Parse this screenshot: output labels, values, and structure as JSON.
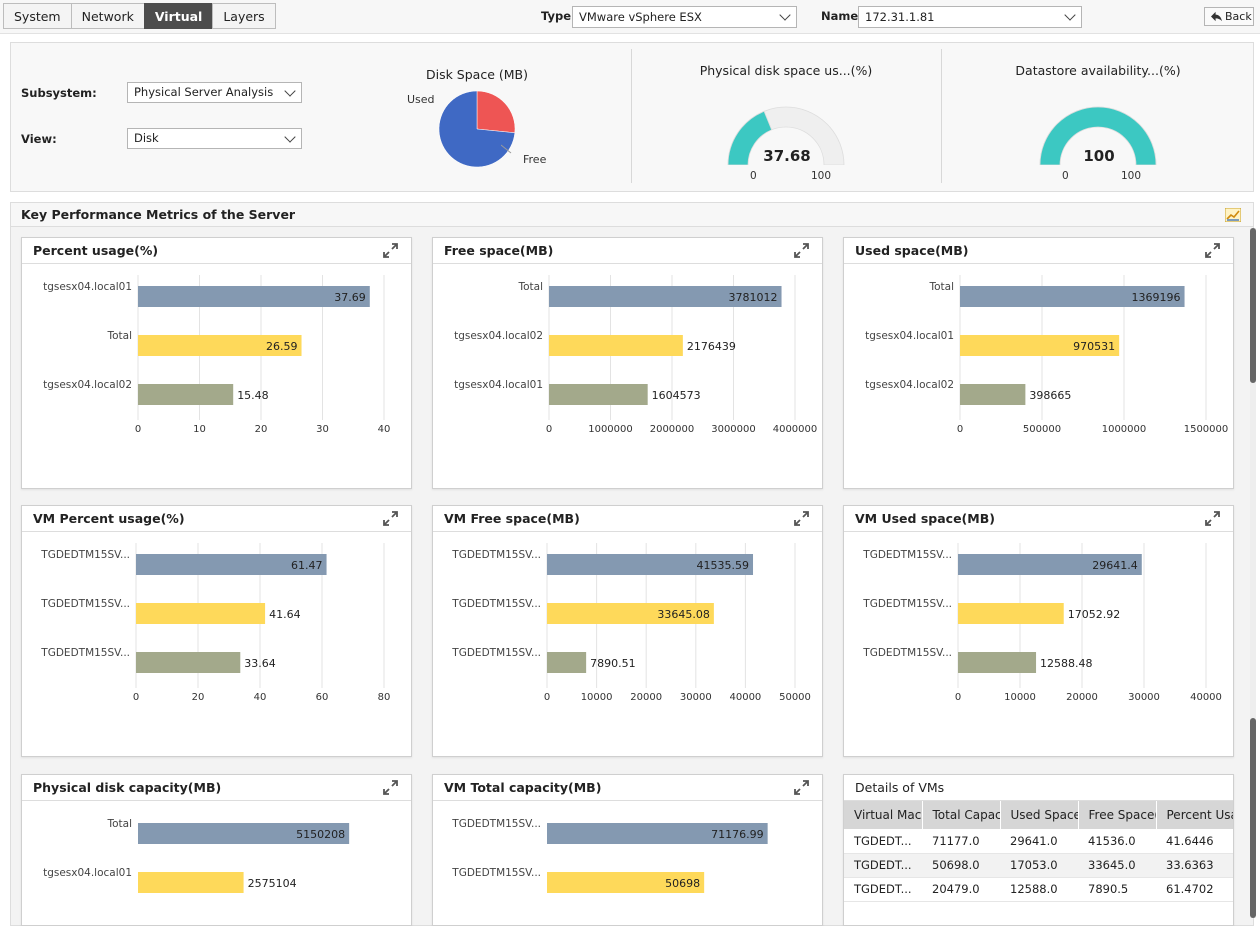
{
  "tabs": [
    {
      "label": "System",
      "active": false
    },
    {
      "label": "Network",
      "active": false
    },
    {
      "label": "Virtual",
      "active": true
    },
    {
      "label": "Layers",
      "active": false
    }
  ],
  "toolbar": {
    "type_label": "Type",
    "type_value": "VMware vSphere ESX",
    "name_label": "Name",
    "name_value": "172.31.1.81",
    "back_label": "Back"
  },
  "summary": {
    "subsystem_label": "Subsystem:",
    "subsystem_value": "Physical Server Analysis",
    "view_label": "View:",
    "view_value": "Disk",
    "pie": {
      "title": "Disk Space (MB)",
      "slices": [
        {
          "label": "Used",
          "value": 1369196,
          "color": "#ee5554"
        },
        {
          "label": "Free",
          "value": 3781012,
          "color": "#3f69c4"
        }
      ]
    },
    "gauge1": {
      "title": "Physical disk space us...(%)",
      "value": 37.68,
      "value_text": "37.68",
      "min": "0",
      "max": "100",
      "color": "#3cc8c2"
    },
    "gauge2": {
      "title": "Datastore availability...(%)",
      "value": 100,
      "value_text": "100",
      "min": "0",
      "max": "100",
      "color": "#3cc8c2"
    }
  },
  "kpm": {
    "title": "Key Performance Metrics of the Server"
  },
  "colors": {
    "bar1": "#8499b1",
    "bar2": "#fed95a",
    "bar3": "#a3a98b"
  },
  "chart_data": [
    {
      "type": "bar",
      "orientation": "horizontal",
      "title": "Percent usage(%)",
      "categories": [
        "tgsesx04.local01",
        "Total",
        "tgsesx04.local02"
      ],
      "values": [
        37.69,
        26.59,
        15.48
      ],
      "value_labels": [
        "37.69",
        "26.59",
        "15.48"
      ],
      "xlim": [
        0,
        40
      ],
      "ticks": [
        "0",
        "10",
        "20",
        "30",
        "40"
      ]
    },
    {
      "type": "bar",
      "orientation": "horizontal",
      "title": "Free space(MB)",
      "categories": [
        "Total",
        "tgsesx04.local02",
        "tgsesx04.local01"
      ],
      "values": [
        3781012,
        2176439,
        1604573
      ],
      "value_labels": [
        "3781012",
        "2176439",
        "1604573"
      ],
      "xlim": [
        0,
        4000000
      ],
      "ticks": [
        "0",
        "1000000",
        "2000000",
        "3000000",
        "4000000"
      ]
    },
    {
      "type": "bar",
      "orientation": "horizontal",
      "title": "Used space(MB)",
      "categories": [
        "Total",
        "tgsesx04.local01",
        "tgsesx04.local02"
      ],
      "values": [
        1369196,
        970531,
        398665
      ],
      "value_labels": [
        "1369196",
        "970531",
        "398665"
      ],
      "xlim": [
        0,
        1500000
      ],
      "ticks": [
        "0",
        "500000",
        "1000000",
        "1500000"
      ]
    },
    {
      "type": "bar",
      "orientation": "horizontal",
      "title": "VM Percent usage(%)",
      "categories": [
        "TGDEDTM15SV...",
        "TGDEDTM15SV...",
        "TGDEDTM15SV..."
      ],
      "values": [
        61.47,
        41.64,
        33.64
      ],
      "value_labels": [
        "61.47",
        "41.64",
        "33.64"
      ],
      "xlim": [
        0,
        80
      ],
      "ticks": [
        "0",
        "20",
        "40",
        "60",
        "80"
      ]
    },
    {
      "type": "bar",
      "orientation": "horizontal",
      "title": "VM Free space(MB)",
      "categories": [
        "TGDEDTM15SV...",
        "TGDEDTM15SV...",
        "TGDEDTM15SV..."
      ],
      "values": [
        41535.59,
        33645.08,
        7890.51
      ],
      "value_labels": [
        "41535.59",
        "33645.08",
        "7890.51"
      ],
      "xlim": [
        0,
        50000
      ],
      "ticks": [
        "0",
        "10000",
        "20000",
        "30000",
        "40000",
        "50000"
      ]
    },
    {
      "type": "bar",
      "orientation": "horizontal",
      "title": "VM Used space(MB)",
      "categories": [
        "TGDEDTM15SV...",
        "TGDEDTM15SV...",
        "TGDEDTM15SV..."
      ],
      "values": [
        29641.4,
        17052.92,
        12588.48
      ],
      "value_labels": [
        "29641.4",
        "17052.92",
        "12588.48"
      ],
      "xlim": [
        0,
        40000
      ],
      "ticks": [
        "0",
        "10000",
        "20000",
        "30000",
        "40000"
      ]
    },
    {
      "type": "bar",
      "orientation": "horizontal",
      "title": "Physical disk capacity(MB)",
      "categories": [
        "Total",
        "tgsesx04.local01"
      ],
      "values": [
        5150208,
        2575104
      ],
      "value_labels": [
        "5150208",
        "2575104"
      ],
      "xlim": [
        0,
        6000000
      ],
      "ticks": []
    },
    {
      "type": "bar",
      "orientation": "horizontal",
      "title": "VM Total capacity(MB)",
      "categories": [
        "TGDEDTM15SV...",
        "TGDEDTM15SV..."
      ],
      "values": [
        71176.99,
        50698
      ],
      "value_labels": [
        "71176.99",
        "50698"
      ],
      "xlim": [
        0,
        80000
      ],
      "ticks": []
    },
    {
      "type": "table",
      "title": "Details of VMs",
      "columns": [
        "Virtual Machine",
        "Total Capacity",
        "Used Space",
        "Free Space(",
        "Percent Usa"
      ],
      "rows": [
        [
          "TGDEDT...",
          "71177.0",
          "29641.0",
          "41536.0",
          "41.6446"
        ],
        [
          "TGDEDT...",
          "50698.0",
          "17053.0",
          "33645.0",
          "33.6363"
        ],
        [
          "TGDEDT...",
          "20479.0",
          "12588.0",
          "7890.5",
          "61.4702"
        ]
      ]
    }
  ]
}
